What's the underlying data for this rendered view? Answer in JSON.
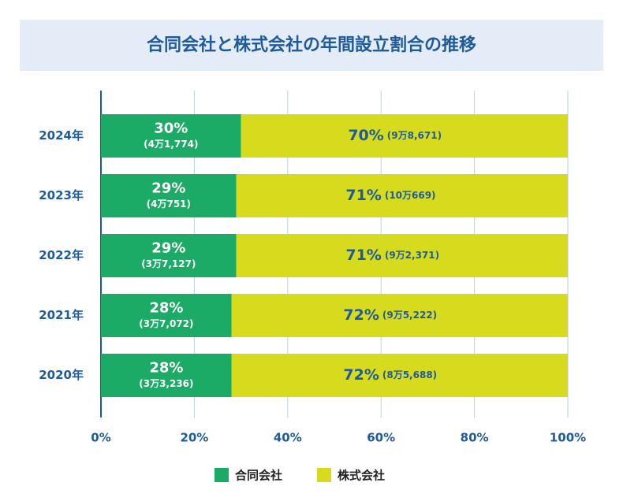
{
  "chart_data": {
    "type": "stacked-bar-horizontal",
    "title": "合同会社と株式会社の年間設立割合の推移",
    "categories": [
      "2024年",
      "2023年",
      "2022年",
      "2021年",
      "2020年"
    ],
    "series": [
      {
        "name": "合同会社",
        "color": "#1bab66",
        "label_color": "#ffffff",
        "values": [
          30,
          29,
          29,
          28,
          28
        ],
        "value_labels": [
          "30%",
          "29%",
          "29%",
          "28%",
          "28%"
        ],
        "count_labels": [
          "(4万1,774)",
          "(4万751)",
          "(3万7,127)",
          "(3万7,072)",
          "(3万3,236)"
        ]
      },
      {
        "name": "株式会社",
        "color": "#d6dc1d",
        "label_color": "#1f5a9a",
        "values": [
          70,
          71,
          71,
          72,
          72
        ],
        "value_labels": [
          "70%",
          "71%",
          "71%",
          "72%",
          "72%"
        ],
        "count_labels": [
          "(9万8,671)",
          "(10万669)",
          "(9万2,371)",
          "(9万5,222)",
          "(8万5,688)"
        ]
      }
    ],
    "xlim": [
      0,
      100
    ],
    "xticks": [
      {
        "value": 0,
        "label": "0%"
      },
      {
        "value": 20,
        "label": "20%"
      },
      {
        "value": 40,
        "label": "40%"
      },
      {
        "value": 60,
        "label": "60%"
      },
      {
        "value": 80,
        "label": "80%"
      },
      {
        "value": 100,
        "label": "100%"
      }
    ],
    "grid": true,
    "legend": "bottom"
  }
}
